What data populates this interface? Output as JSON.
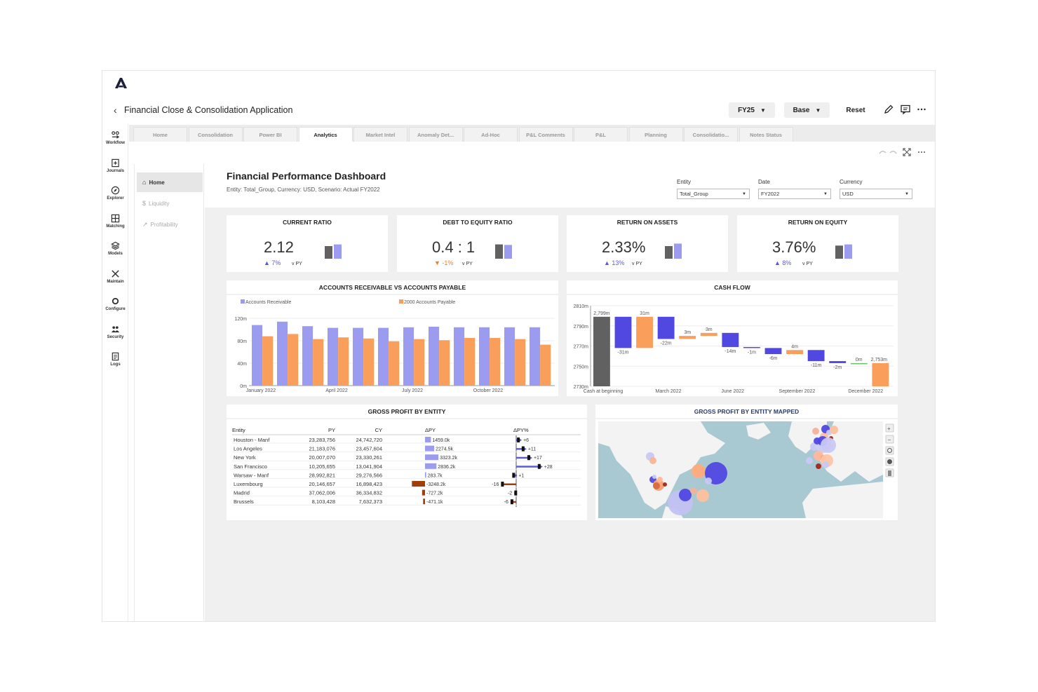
{
  "app": {
    "title": "Financial Close & Consolidation Application",
    "fy_dropdown": "FY25",
    "scenario_dropdown": "Base",
    "reset_label": "Reset"
  },
  "nav": [
    {
      "label": "Workflow",
      "icon": "workflow-icon"
    },
    {
      "label": "Journals",
      "icon": "journals-icon"
    },
    {
      "label": "Explorer",
      "icon": "compass-icon"
    },
    {
      "label": "Matching",
      "icon": "matching-icon"
    },
    {
      "label": "Models",
      "icon": "layers-icon"
    },
    {
      "label": "Maintain",
      "icon": "tools-icon"
    },
    {
      "label": "Configure",
      "icon": "gear-icon"
    },
    {
      "label": "Security",
      "icon": "users-icon"
    },
    {
      "label": "Logs",
      "icon": "document-icon"
    }
  ],
  "tabs": [
    "Home",
    "Consolidation",
    "Power BI",
    "Analytics",
    "Market Intel",
    "Anomaly Det...",
    "Ad-Hoc",
    "P&L Comments",
    "P&L",
    "Planning",
    "Consolidatio...",
    "Notes Status"
  ],
  "active_tab": "Analytics",
  "side": [
    {
      "label": "Home",
      "icon": "home-icon"
    },
    {
      "label": "Liquidity",
      "icon": "dollar-icon"
    },
    {
      "label": "Profitability",
      "icon": "trend-icon"
    }
  ],
  "dashboard": {
    "title": "Financial Performance Dashboard",
    "subtitle": "Entity: Total_Group, Currency: USD, Scenario: Actual FY2022",
    "filters": [
      {
        "label": "Entity",
        "value": "Total_Group"
      },
      {
        "label": "Date",
        "value": "FY2022"
      },
      {
        "label": "Currency",
        "value": "USD"
      }
    ]
  },
  "kpis": [
    {
      "title": "CURRENT RATIO",
      "value": "2.12",
      "delta": "7%",
      "direction": "up",
      "vs": "v PY",
      "py_level": 0.75,
      "cy_level": 0.85
    },
    {
      "title": "DEBT TO EQUITY RATIO",
      "value": "0.4 : 1",
      "delta": "-1%",
      "direction": "down",
      "vs": "v PY",
      "py_level": 0.85,
      "cy_level": 0.82
    },
    {
      "title": "RETURN ON ASSETS",
      "value": "2.33%",
      "delta": "13%",
      "direction": "up",
      "vs": "v PY",
      "py_level": 0.75,
      "cy_level": 0.9
    },
    {
      "title": "RETURN ON EQUITY",
      "value": "3.76%",
      "delta": "8%",
      "direction": "up",
      "vs": "v PY",
      "py_level": 0.78,
      "cy_level": 0.85
    }
  ],
  "colors": {
    "purple": "#9b9cf0",
    "orange": "#fa9e5c",
    "blue": "#5048e0",
    "dark": "#616161",
    "up": "#5b5bd6",
    "down": "#f47a1f",
    "map_water": "#a9c9d2",
    "map_land": "#f3f3f3"
  },
  "chart_data": [
    {
      "type": "bar",
      "title": "ACCOUNTS RECEIVABLE VS ACCOUNTS PAYABLE",
      "x_tick_labels": [
        "January 2022",
        "April 2022",
        "July 2022",
        "October 2022"
      ],
      "y_tick_labels": [
        "0m",
        "40m",
        "80m",
        "120m"
      ],
      "ylim": [
        0,
        120
      ],
      "legend": "top",
      "series": [
        {
          "name": "Accounts Receivable",
          "color": "#9b9cf0",
          "values": [
            108,
            114,
            106,
            103,
            103,
            103,
            104,
            105,
            104,
            104,
            104,
            104
          ]
        },
        {
          "name": "2000 Accounts Payable",
          "color": "#fa9e5c",
          "values": [
            88,
            92,
            83,
            86,
            84,
            79,
            83,
            81,
            85,
            85,
            83,
            73
          ]
        }
      ]
    },
    {
      "type": "waterfall",
      "title": "CASH FLOW",
      "x_tick_labels": [
        "Cash at beginning",
        "March 2022",
        "June 2022",
        "September 2022",
        "December 2022"
      ],
      "y_tick_labels": [
        "2730m",
        "2750m",
        "2770m",
        "2790m",
        "2810m"
      ],
      "ylim": [
        2730,
        2810
      ],
      "steps": [
        {
          "label": "2,799m",
          "value": 2799,
          "kind": "total"
        },
        {
          "label": "-31m",
          "value": -31,
          "kind": "decrease"
        },
        {
          "label": "31m",
          "value": 31,
          "kind": "increase"
        },
        {
          "label": "-22m",
          "value": -22,
          "kind": "decrease"
        },
        {
          "label": "3m",
          "value": 3,
          "kind": "increase"
        },
        {
          "label": "3m",
          "value": 3,
          "kind": "increase"
        },
        {
          "label": "-14m",
          "value": -14,
          "kind": "decrease"
        },
        {
          "label": "-1m",
          "value": -1,
          "kind": "decrease"
        },
        {
          "label": "-6m",
          "value": -6,
          "kind": "decrease"
        },
        {
          "label": "4m",
          "value": 4,
          "kind": "increase"
        },
        {
          "label": "-11m",
          "value": -11,
          "kind": "decrease"
        },
        {
          "label": "-2m",
          "value": -2,
          "kind": "decrease"
        },
        {
          "label": "0m",
          "value": 0,
          "kind": "increase"
        },
        {
          "label": "2,753m",
          "value": 2753,
          "kind": "end"
        }
      ]
    },
    {
      "type": "table",
      "title": "GROSS PROFIT BY ENTITY",
      "columns": [
        "Entity",
        "PY",
        "CY",
        "ΔPY",
        "ΔPY%"
      ],
      "rows": [
        {
          "entity": "Houston - Manf",
          "py": "23,283,756",
          "cy": "24,742,720",
          "dpy": 1459.0,
          "dpy_label": "1459.0k",
          "dpct": 6,
          "dpct_label": "+6"
        },
        {
          "entity": "Los Angeles",
          "py": "21,183,076",
          "cy": "23,457,604",
          "dpy": 2274.5,
          "dpy_label": "2274.5k",
          "dpct": 11,
          "dpct_label": "+11"
        },
        {
          "entity": "New York",
          "py": "20,007,070",
          "cy": "23,330,261",
          "dpy": 3323.2,
          "dpy_label": "3323.2k",
          "dpct": 17,
          "dpct_label": "+17"
        },
        {
          "entity": "San Francisco",
          "py": "10,205,655",
          "cy": "13,041,904",
          "dpy": 2836.2,
          "dpy_label": "2836.2k",
          "dpct": 28,
          "dpct_label": "+28"
        },
        {
          "entity": "Warsaw - Manf",
          "py": "28,992,821",
          "cy": "29,276,566",
          "dpy": 283.7,
          "dpy_label": "283.7k",
          "dpct": 1,
          "dpct_label": "+1"
        },
        {
          "entity": "Luxembourg",
          "py": "20,146,657",
          "cy": "16,898,423",
          "dpy": -3248.2,
          "dpy_label": "-3248.2k",
          "dpct": -16,
          "dpct_label": "-16"
        },
        {
          "entity": "Madrid",
          "py": "37,062,006",
          "cy": "36,334,832",
          "dpy": -727.2,
          "dpy_label": "-727.2k",
          "dpct": -2,
          "dpct_label": "-2"
        },
        {
          "entity": "Brussels",
          "py": "8,103,428",
          "cy": "7,632,373",
          "dpy": -471.1,
          "dpy_label": "-471.1k",
          "dpct": -6,
          "dpct_label": "-6"
        }
      ]
    }
  ],
  "map": {
    "title": "GROSS PROFIT BY ENTITY MAPPED",
    "tools": [
      "zoom-in-icon",
      "zoom-out-icon",
      "search-icon",
      "globe-icon",
      "layers-icon"
    ]
  }
}
